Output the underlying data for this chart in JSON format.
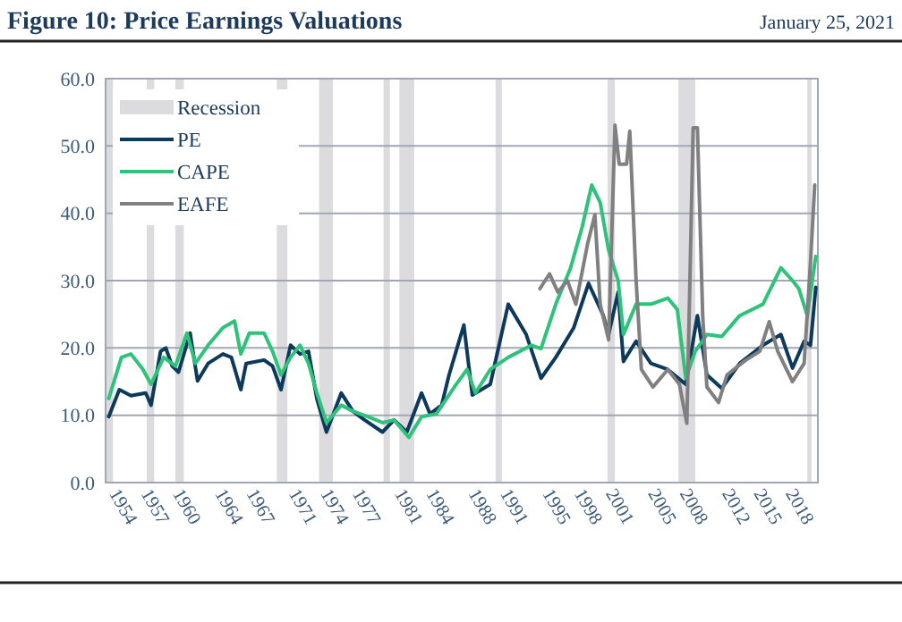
{
  "chart_data": {
    "type": "line",
    "title": "Figure 10: Price Earnings Valuations",
    "subtitle": "January 25, 2021",
    "xlim": [
      1953.7,
      2021.1
    ],
    "xticks": [
      1954,
      1957,
      1960,
      1964,
      1967,
      1971,
      1974,
      1977,
      1981,
      1984,
      1988,
      1991,
      1995,
      1998,
      2001,
      2005,
      2008,
      2012,
      2015,
      2018
    ],
    "ylim": [
      0,
      60
    ],
    "yticks": [
      {
        "value": 0,
        "label": "0.0"
      },
      {
        "value": 10,
        "label": "10.0"
      },
      {
        "value": 20,
        "label": "20.0"
      },
      {
        "value": 30,
        "label": "30.0"
      },
      {
        "value": 40,
        "label": "40.0"
      },
      {
        "value": 50,
        "label": "50.0"
      },
      {
        "value": 60,
        "label": "60.0"
      }
    ],
    "grid": "y",
    "legend": "top left",
    "bands": [
      {
        "axis": "x",
        "from": 1953.7,
        "to": 1954.4,
        "label": "Recession",
        "color": "#dcdcdf"
      },
      {
        "axis": "x",
        "from": 1957.6,
        "to": 1958.3,
        "color": "#dcdcdf"
      },
      {
        "axis": "x",
        "from": 1960.3,
        "to": 1961.1,
        "color": "#dcdcdf"
      },
      {
        "axis": "x",
        "from": 1969.9,
        "to": 1970.9,
        "color": "#dcdcdf"
      },
      {
        "axis": "x",
        "from": 1973.9,
        "to": 1975.2,
        "color": "#dcdcdf"
      },
      {
        "axis": "x",
        "from": 1980.0,
        "to": 1980.6,
        "color": "#dcdcdf"
      },
      {
        "axis": "x",
        "from": 1981.5,
        "to": 1982.9,
        "color": "#dcdcdf"
      },
      {
        "axis": "x",
        "from": 1990.6,
        "to": 1991.2,
        "color": "#dcdcdf"
      },
      {
        "axis": "x",
        "from": 2001.2,
        "to": 2001.9,
        "color": "#dcdcdf"
      },
      {
        "axis": "x",
        "from": 2007.9,
        "to": 2009.5,
        "color": "#dcdcdf"
      },
      {
        "axis": "x",
        "from": 2020.1,
        "to": 2020.5,
        "color": "#dcdcdf"
      }
    ],
    "series": [
      {
        "name": "PE",
        "color": "#0d3a5c",
        "x": [
          1954,
          1955,
          1956.1,
          1957.5,
          1958,
          1958.9,
          1959.4,
          1960,
          1960.6,
          1961.7,
          1962.4,
          1963.4,
          1964.8,
          1965.6,
          1966.5,
          1967,
          1968.7,
          1969.5,
          1970.3,
          1971.2,
          1972.1,
          1972.9,
          1973.7,
          1974.6,
          1976,
          1977.1,
          1978.2,
          1979.9,
          1981,
          1982.2,
          1983.6,
          1984.4,
          1985.5,
          1986.2,
          1987.6,
          1988.4,
          1990.1,
          1991.8,
          1993.5,
          1994.9,
          1996.3,
          1998,
          1999.4,
          2000.8,
          2001.3,
          2002.2,
          2002.7,
          2003.9,
          2005.3,
          2006.9,
          2008.6,
          2009.7,
          2010.6,
          2012,
          2013.7,
          2015.9,
          2017.6,
          2018.7,
          2019.8,
          2020.4,
          2020.9
        ],
        "values": [
          9.8,
          13.8,
          12.9,
          13.3,
          11.5,
          19.5,
          20,
          17.3,
          16.4,
          22.2,
          15.1,
          17.7,
          19.1,
          18.6,
          13.8,
          17.7,
          18.2,
          17.3,
          13.8,
          20.4,
          19.1,
          19.5,
          12.4,
          7.5,
          13.3,
          10.6,
          9.3,
          7.5,
          9.3,
          7.5,
          13.3,
          10.2,
          11.5,
          16,
          23.4,
          13,
          14.6,
          26.5,
          22,
          15.5,
          18.6,
          23,
          29.6,
          24.8,
          22,
          28.3,
          18,
          21,
          17.7,
          16.8,
          14.6,
          24.8,
          16,
          14,
          17.7,
          20.4,
          22,
          17,
          21,
          20.4,
          29
        ]
      },
      {
        "name": "CAPE",
        "color": "#2ec27a",
        "x": [
          1954,
          1955.2,
          1956.1,
          1957.2,
          1958,
          1959.2,
          1960.3,
          1961.4,
          1962.2,
          1963.4,
          1964.8,
          1965.9,
          1966.5,
          1967.3,
          1968.7,
          1969.5,
          1970.3,
          1971.2,
          1972.1,
          1972.9,
          1973.7,
          1974.6,
          1976,
          1977.1,
          1978.5,
          1979.9,
          1981,
          1982.4,
          1983.6,
          1985,
          1986.7,
          1987.9,
          1988.7,
          1990.1,
          1991.8,
          1994,
          1994.9,
          1996.3,
          1997.7,
          1998.8,
          1999.7,
          2000.5,
          2001.3,
          2002.2,
          2002.7,
          2003.9,
          2005.3,
          2006.9,
          2007.8,
          2008.6,
          2009.5,
          2010.6,
          2012,
          2013.7,
          2015.9,
          2017.6,
          2018.7,
          2019.3,
          2020.1,
          2020.9
        ],
        "values": [
          12.5,
          18.6,
          19.1,
          16.9,
          14.6,
          18.6,
          17.3,
          22.2,
          17.7,
          20.4,
          23,
          24,
          19.1,
          22.2,
          22.2,
          19.5,
          16,
          18.6,
          20.4,
          17.7,
          13.3,
          8.9,
          11.5,
          10.6,
          9.8,
          8.9,
          9.3,
          6.7,
          9.8,
          10.2,
          14.2,
          16.8,
          13.3,
          16.8,
          18.6,
          20.4,
          19.9,
          26.5,
          31.9,
          38,
          44.2,
          41.6,
          34.5,
          30,
          22,
          26.5,
          26.5,
          27.4,
          25.7,
          15.5,
          19.5,
          22,
          21.7,
          24.8,
          26.5,
          31.9,
          30,
          28.8,
          24.8,
          33.6
        ]
      },
      {
        "name": "EAFE",
        "color": "#808080",
        "x": [
          1994.8,
          1995.7,
          1996.5,
          1997.4,
          1998.2,
          1999.3,
          2000,
          2000.5,
          2001.3,
          2001.9,
          2002.3,
          2003,
          2003.3,
          2003.9,
          2004.4,
          2005.5,
          2006.9,
          2008,
          2008.7,
          2009.3,
          2009.7,
          2010.2,
          2010.6,
          2011.7,
          2012.5,
          2014.2,
          2015.6,
          2016.5,
          2017.3,
          2018.7,
          2019.8,
          2020.4,
          2020.8
        ],
        "values": [
          28.8,
          31,
          28.3,
          30,
          26.5,
          35.4,
          39.8,
          26.5,
          21.2,
          53.1,
          47.3,
          47.3,
          52.2,
          30,
          16.8,
          14.2,
          16.8,
          14.6,
          8.8,
          52.7,
          52.7,
          24.8,
          14.2,
          11.9,
          16,
          18.1,
          19.5,
          23.9,
          19.5,
          15,
          17.7,
          32.7,
          44.2
        ]
      }
    ]
  }
}
